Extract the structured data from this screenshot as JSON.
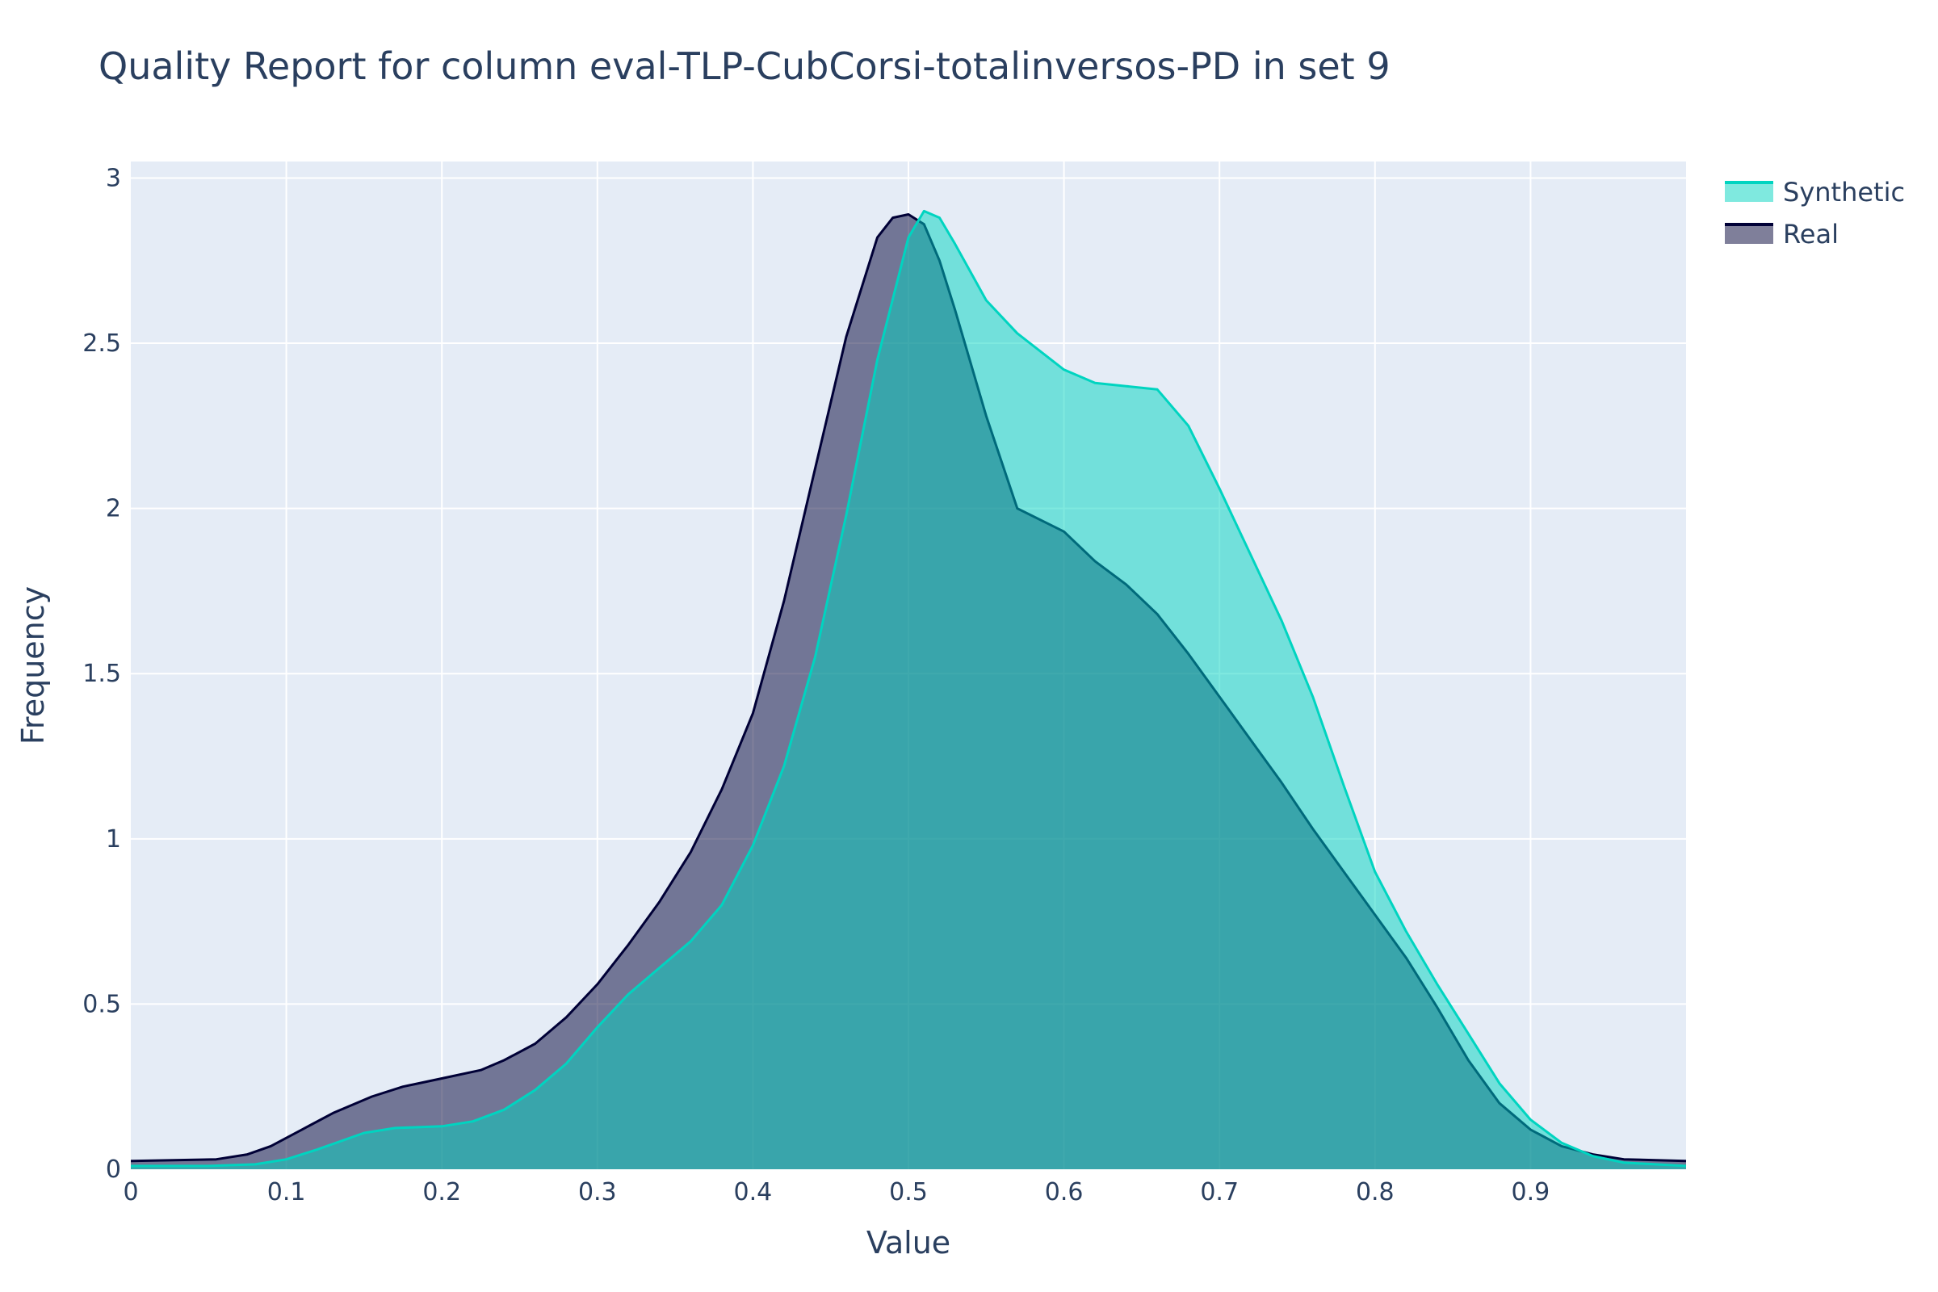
{
  "chart_data": {
    "type": "area",
    "title": "Quality Report for column eval-TLP-CubCorsi-totalinversos-PD in set 9",
    "xlabel": "Value",
    "ylabel": "Frequency",
    "xlim": [
      0,
      1
    ],
    "ylim": [
      0,
      3.05
    ],
    "x_ticks": [
      0,
      0.1,
      0.2,
      0.3,
      0.4,
      0.5,
      0.6,
      0.7,
      0.8,
      0.9
    ],
    "x_tick_labels": [
      "0",
      "0.1",
      "0.2",
      "0.3",
      "0.4",
      "0.5",
      "0.6",
      "0.7",
      "0.8",
      "0.9"
    ],
    "y_ticks": [
      0,
      0.5,
      1,
      1.5,
      2,
      2.5,
      3
    ],
    "y_tick_labels": [
      "0",
      "0.5",
      "1",
      "1.5",
      "2",
      "2.5",
      "3"
    ],
    "grid": true,
    "legend_position": "top-right",
    "series": [
      {
        "name": "Synthetic",
        "line_color": "#00d4c0",
        "fill_color": "rgba(0,212,192,0.5)",
        "x": [
          0,
          0.05,
          0.08,
          0.1,
          0.12,
          0.15,
          0.17,
          0.2,
          0.22,
          0.24,
          0.26,
          0.28,
          0.3,
          0.32,
          0.34,
          0.36,
          0.38,
          0.4,
          0.42,
          0.44,
          0.46,
          0.48,
          0.5,
          0.51,
          0.52,
          0.53,
          0.55,
          0.57,
          0.6,
          0.62,
          0.64,
          0.66,
          0.68,
          0.7,
          0.72,
          0.74,
          0.76,
          0.78,
          0.8,
          0.82,
          0.84,
          0.86,
          0.88,
          0.9,
          0.92,
          0.94,
          0.96,
          1.0
        ],
        "y": [
          0.01,
          0.01,
          0.015,
          0.03,
          0.06,
          0.11,
          0.125,
          0.13,
          0.145,
          0.18,
          0.24,
          0.32,
          0.43,
          0.53,
          0.61,
          0.69,
          0.8,
          0.98,
          1.22,
          1.55,
          1.98,
          2.45,
          2.82,
          2.9,
          2.88,
          2.8,
          2.63,
          2.53,
          2.42,
          2.38,
          2.37,
          2.36,
          2.25,
          2.06,
          1.86,
          1.66,
          1.43,
          1.16,
          0.9,
          0.72,
          0.56,
          0.41,
          0.26,
          0.15,
          0.08,
          0.04,
          0.02,
          0.01
        ]
      },
      {
        "name": "Real",
        "line_color": "#000036",
        "fill_color": "rgba(0,0,54,0.5)",
        "x": [
          0,
          0.055,
          0.075,
          0.09,
          0.11,
          0.13,
          0.155,
          0.175,
          0.2,
          0.225,
          0.24,
          0.26,
          0.28,
          0.3,
          0.32,
          0.34,
          0.36,
          0.38,
          0.4,
          0.42,
          0.44,
          0.46,
          0.48,
          0.49,
          0.5,
          0.51,
          0.52,
          0.53,
          0.55,
          0.57,
          0.6,
          0.62,
          0.64,
          0.66,
          0.68,
          0.7,
          0.72,
          0.74,
          0.76,
          0.78,
          0.8,
          0.82,
          0.84,
          0.86,
          0.88,
          0.9,
          0.92,
          0.94,
          0.96,
          1.0
        ],
        "y": [
          0.025,
          0.03,
          0.045,
          0.07,
          0.12,
          0.17,
          0.22,
          0.25,
          0.275,
          0.3,
          0.33,
          0.38,
          0.46,
          0.56,
          0.68,
          0.81,
          0.96,
          1.15,
          1.38,
          1.72,
          2.12,
          2.52,
          2.82,
          2.88,
          2.89,
          2.86,
          2.75,
          2.6,
          2.28,
          2.0,
          1.93,
          1.84,
          1.77,
          1.68,
          1.56,
          1.43,
          1.3,
          1.17,
          1.03,
          0.9,
          0.77,
          0.64,
          0.49,
          0.33,
          0.2,
          0.12,
          0.07,
          0.045,
          0.03,
          0.025
        ]
      }
    ]
  }
}
